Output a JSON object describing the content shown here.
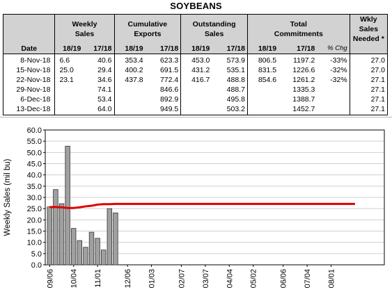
{
  "title": "SOYBEANS",
  "table": {
    "headers": {
      "date": "Date",
      "weekly": "Weekly Sales",
      "cumulative": "Cumulative Exports",
      "outstanding": "Outstanding Sales",
      "total": "Total Commitments",
      "wkly_needed": "Wkly Sales Needed *",
      "y1": "18/19",
      "y2": "17/18",
      "pct": "% Chg"
    },
    "rows": [
      [
        "8-Nov-18",
        "6.6",
        "40.6",
        "353.4",
        "623.3",
        "453.0",
        "573.9",
        "806.5",
        "1197.2",
        "-33%",
        "27.0"
      ],
      [
        "15-Nov-18",
        "25.0",
        "29.4",
        "400.2",
        "691.5",
        "431.2",
        "535.1",
        "831.5",
        "1226.6",
        "-32%",
        "27.0"
      ],
      [
        "22-Nov-18",
        "23.1",
        "34.6",
        "437.8",
        "772.4",
        "416.7",
        "488.8",
        "854.6",
        "1261.2",
        "-32%",
        "27.1"
      ],
      [
        "29-Nov-18",
        "",
        "74.1",
        "",
        "846.6",
        "",
        "488.7",
        "",
        "1335.3",
        "",
        "27.1"
      ],
      [
        "6-Dec-18",
        "",
        "53.4",
        "",
        "892.9",
        "",
        "495.8",
        "",
        "1388.7",
        "",
        "27.1"
      ],
      [
        "13-Dec-18",
        "",
        "64.0",
        "",
        "949.5",
        "",
        "503.2",
        "",
        "1452.7",
        "",
        "27.1"
      ]
    ]
  },
  "chart_data": {
    "type": "bar",
    "ylabel": "Weekly Sales (mil bu)",
    "ylim": [
      0,
      60
    ],
    "yticks": [
      "0.0",
      "5.0",
      "10.0",
      "15.0",
      "20.0",
      "25.0",
      "30.0",
      "35.0",
      "40.0",
      "45.0",
      "50.0",
      "55.0",
      "60.0"
    ],
    "xlabels": [
      "09/06",
      "10/04",
      "11/01",
      "12/06",
      "01/03",
      "02/07",
      "03/07",
      "04/04",
      "05/02",
      "06/06",
      "07/04",
      "08/01"
    ],
    "grid": true,
    "bar_color": "#a0a0a0",
    "line_color": "#e00000",
    "bars": [
      {
        "x": "09/06",
        "y": 25.8
      },
      {
        "x": "09/13",
        "y": 33.5
      },
      {
        "x": "09/20",
        "y": 27.2
      },
      {
        "x": "09/27",
        "y": 52.8
      },
      {
        "x": "10/04",
        "y": 16.2
      },
      {
        "x": "10/11",
        "y": 10.8
      },
      {
        "x": "10/18",
        "y": 7.8
      },
      {
        "x": "10/25",
        "y": 14.5
      },
      {
        "x": "11/01",
        "y": 11.8
      },
      {
        "x": "11/08",
        "y": 6.6
      },
      {
        "x": "11/15",
        "y": 25.0
      },
      {
        "x": "11/22",
        "y": 23.1
      }
    ],
    "needed_line": [
      {
        "x": "09/06",
        "y": 25.7
      },
      {
        "x": "09/13",
        "y": 25.7
      },
      {
        "x": "09/20",
        "y": 25.6
      },
      {
        "x": "09/27",
        "y": 25.3
      },
      {
        "x": "10/04",
        "y": 25.3
      },
      {
        "x": "10/11",
        "y": 25.6
      },
      {
        "x": "10/18",
        "y": 26.0
      },
      {
        "x": "10/25",
        "y": 26.3
      },
      {
        "x": "11/01",
        "y": 26.8
      },
      {
        "x": "11/08",
        "y": 27.0
      },
      {
        "x": "11/15",
        "y": 27.0
      },
      {
        "x": "11/22",
        "y": 27.1
      },
      {
        "x": "08/29",
        "y": 27.1
      }
    ]
  }
}
